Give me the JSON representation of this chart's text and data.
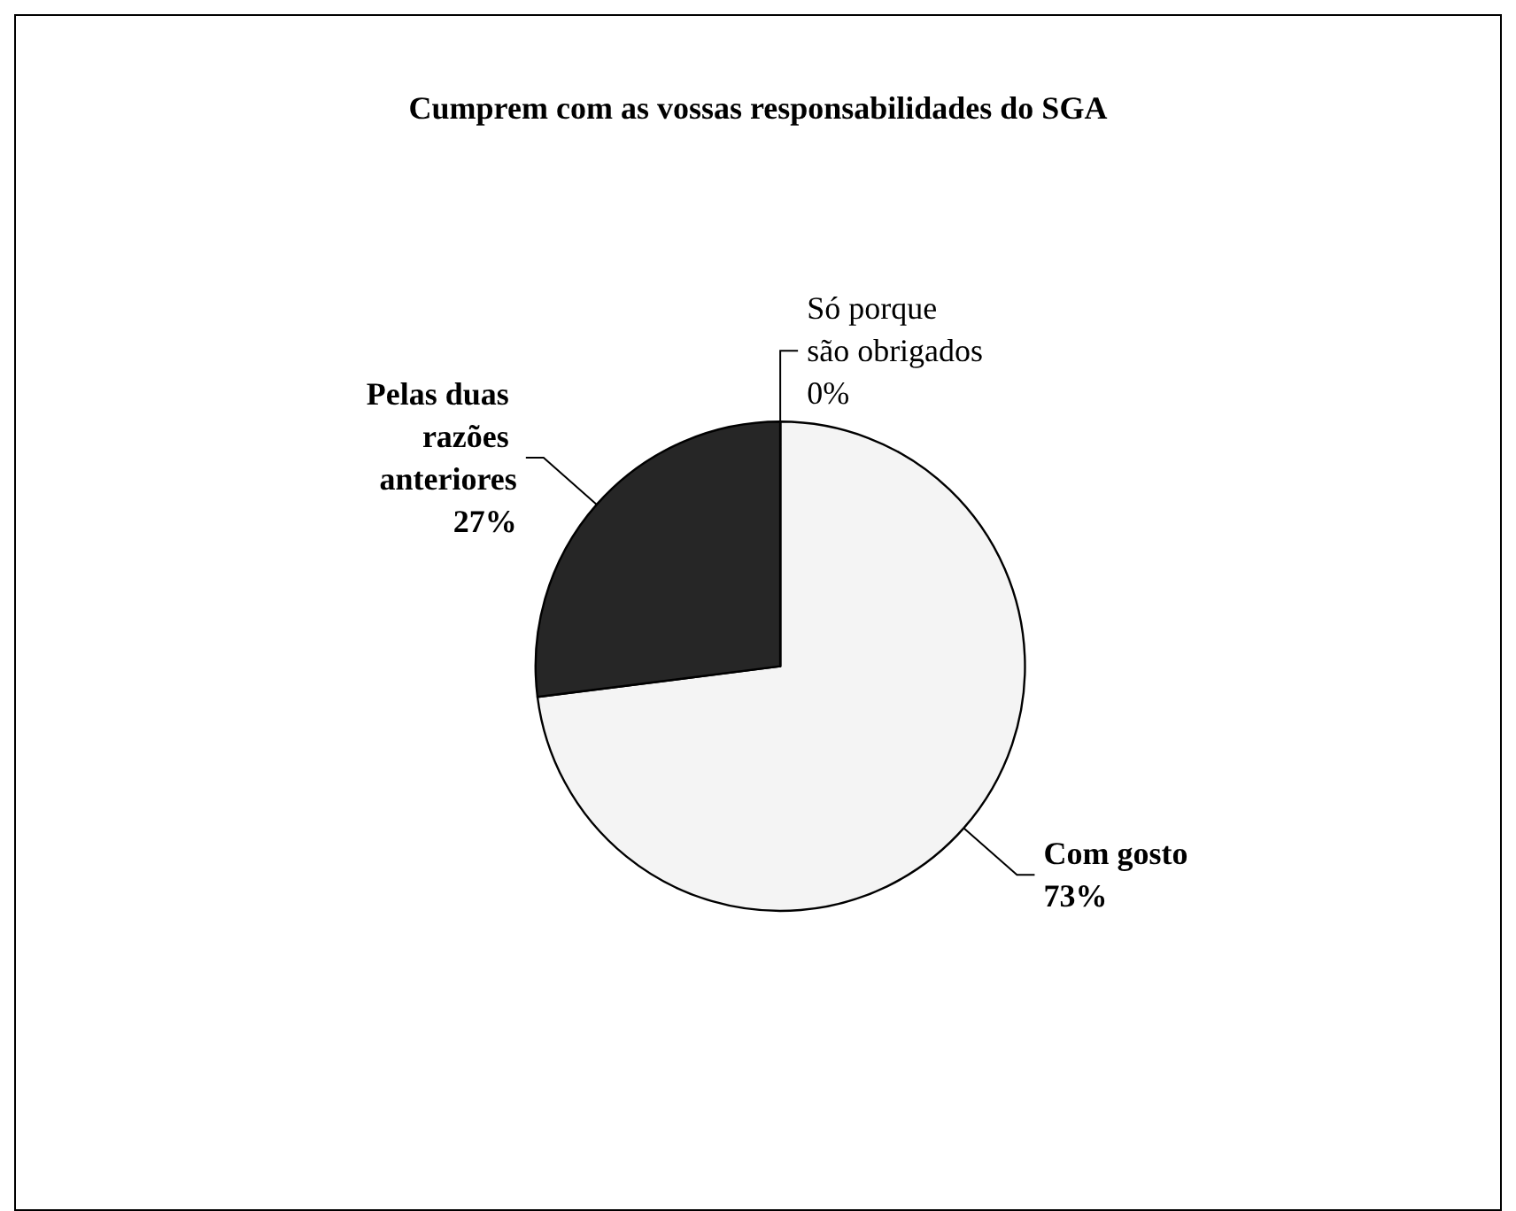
{
  "chart_data": {
    "type": "pie",
    "title": "Cumprem com as vossas responsabilidades do SGA",
    "categories": [
      "Com gosto",
      "Pelas duas razões anteriores",
      "Só porque são obrigados"
    ],
    "values": [
      73,
      27,
      0
    ],
    "value_labels": [
      "73%",
      "27%",
      "0%"
    ],
    "colors": [
      "#f4f4f4",
      "#262626",
      "#ffffff"
    ],
    "legend": false
  }
}
